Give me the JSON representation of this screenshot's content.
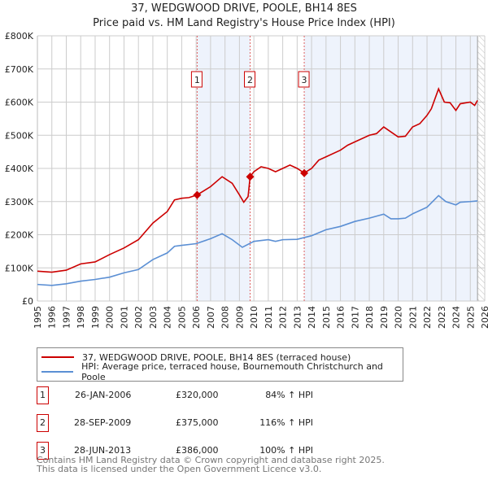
{
  "chart_data": {
    "type": "line",
    "title": "37, WEDGWOOD DRIVE, POOLE, BH14 8ES",
    "subtitle": "Price paid vs. HM Land Registry's House Price Index (HPI)",
    "xlim": [
      1995,
      2026
    ],
    "ylim": [
      0,
      800000
    ],
    "y_ticks": [
      {
        "v": 0,
        "label": "£0"
      },
      {
        "v": 100000,
        "label": "£100K"
      },
      {
        "v": 200000,
        "label": "£200K"
      },
      {
        "v": 300000,
        "label": "£300K"
      },
      {
        "v": 400000,
        "label": "£400K"
      },
      {
        "v": 500000,
        "label": "£500K"
      },
      {
        "v": 600000,
        "label": "£600K"
      },
      {
        "v": 700000,
        "label": "£700K"
      },
      {
        "v": 800000,
        "label": "£800K"
      }
    ],
    "x_ticks": [
      "1995",
      "1996",
      "1997",
      "1998",
      "1999",
      "2000",
      "2001",
      "2002",
      "2003",
      "2004",
      "2005",
      "2006",
      "2007",
      "2008",
      "2009",
      "2010",
      "2011",
      "2012",
      "2013",
      "2014",
      "2015",
      "2016",
      "2017",
      "2018",
      "2019",
      "2020",
      "2021",
      "2022",
      "2023",
      "2024",
      "2025",
      "2026"
    ],
    "grid": true,
    "shaded_ranges": [
      [
        2006.07,
        2009.74
      ],
      [
        2013.49,
        2025.5
      ]
    ],
    "hatched_from": 2025.5,
    "series": [
      {
        "name": "37, WEDGWOOD DRIVE, POOLE, BH14 8ES (terraced house)",
        "color": "#cc0000",
        "x": [
          1995,
          1996,
          1997,
          1998,
          1999,
          2000,
          2001,
          2002,
          2003,
          2004,
          2004.5,
          2005,
          2005.5,
          2006.07,
          2007,
          2007.8,
          2008.5,
          2009,
          2009.3,
          2009.6,
          2009.74,
          2010,
          2010.5,
          2011,
          2011.5,
          2012,
          2012.5,
          2013,
          2013.49,
          2014,
          2014.5,
          2015,
          2016,
          2016.5,
          2017,
          2018,
          2018.5,
          2019,
          2019.5,
          2020,
          2020.5,
          2021,
          2021.5,
          2022,
          2022.3,
          2022.8,
          2023.2,
          2023.6,
          2024,
          2024.3,
          2025,
          2025.3,
          2025.5
        ],
        "y": [
          90000,
          87000,
          93000,
          112000,
          118000,
          140000,
          160000,
          185000,
          235000,
          270000,
          305000,
          310000,
          312000,
          320000,
          345000,
          375000,
          355000,
          320000,
          298000,
          315000,
          375000,
          390000,
          405000,
          400000,
          390000,
          400000,
          410000,
          400000,
          386000,
          400000,
          425000,
          435000,
          455000,
          470000,
          480000,
          500000,
          505000,
          525000,
          510000,
          495000,
          497000,
          525000,
          535000,
          560000,
          580000,
          640000,
          600000,
          598000,
          575000,
          595000,
          600000,
          590000,
          605000
        ]
      },
      {
        "name": "HPI: Average price, terraced house, Bournemouth Christchurch and Poole",
        "color": "#5b8fd4",
        "x": [
          1995,
          1996,
          1997,
          1998,
          1999,
          2000,
          2001,
          2002,
          2003,
          2004,
          2004.5,
          2005,
          2006,
          2007,
          2007.8,
          2008.5,
          2009.2,
          2010,
          2011,
          2011.5,
          2012,
          2013,
          2014,
          2015,
          2016,
          2017,
          2018,
          2019,
          2019.5,
          2020,
          2020.5,
          2021,
          2022,
          2022.8,
          2023.3,
          2024,
          2024.3,
          2025,
          2025.5
        ],
        "y": [
          50000,
          47000,
          52000,
          60000,
          65000,
          72000,
          85000,
          95000,
          125000,
          145000,
          165000,
          168000,
          173000,
          188000,
          203000,
          185000,
          162000,
          180000,
          185000,
          180000,
          185000,
          186000,
          197000,
          215000,
          225000,
          240000,
          250000,
          262000,
          248000,
          248000,
          250000,
          263000,
          283000,
          318000,
          300000,
          290000,
          298000,
          300000,
          302000
        ]
      }
    ],
    "sales": [
      {
        "id": "1",
        "x": 2006.07,
        "price": 320000,
        "date": "26-JAN-2006",
        "price_label": "£320,000",
        "hpi": "84% ↑ HPI"
      },
      {
        "id": "2",
        "x": 2009.74,
        "price": 375000,
        "date": "28-SEP-2009",
        "price_label": "£375,000",
        "hpi": "116% ↑ HPI"
      },
      {
        "id": "3",
        "x": 2013.49,
        "price": 386000,
        "date": "28-JUN-2013",
        "price_label": "£386,000",
        "hpi": "100% ↑ HPI"
      }
    ],
    "legend_placement": "below"
  },
  "footer": {
    "line1": "Contains HM Land Registry data © Crown copyright and database right 2025.",
    "line2": "This data is licensed under the Open Government Licence v3.0."
  }
}
